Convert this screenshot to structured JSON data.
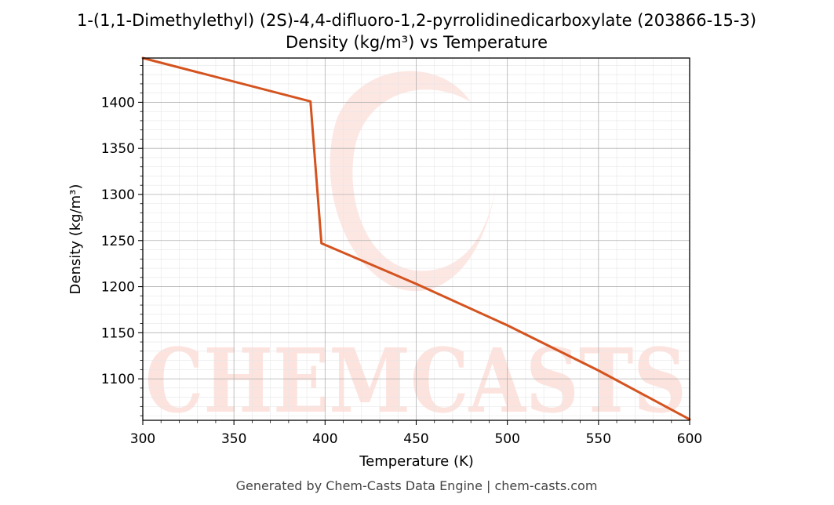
{
  "chart_data": {
    "type": "line",
    "title": "1-(1,1-Dimethylethyl) (2S)-4,4-difluoro-1,2-pyrrolidinedicarboxylate (203866-15-3)",
    "subtitle": "Density (kg/m³) vs Temperature",
    "xlabel": "Temperature (K)",
    "ylabel": "Density (kg/m³)",
    "xlim": [
      300,
      600
    ],
    "ylim": [
      1055,
      1448
    ],
    "xticks": [
      300,
      350,
      400,
      450,
      500,
      550,
      600
    ],
    "yticks": [
      1100,
      1150,
      1200,
      1250,
      1300,
      1350,
      1400
    ],
    "grid": true,
    "series": [
      {
        "color": "#d4531f",
        "x": [
          300,
          392,
          398,
          450,
          500,
          550,
          600
        ],
        "y": [
          1448,
          1401,
          1247,
          1203,
          1158,
          1109,
          1056
        ]
      }
    ]
  },
  "watermark": {
    "text": "CHEMCASTS",
    "color": "#fde3de"
  },
  "footer": "Generated by Chem-Casts Data Engine | chem-casts.com"
}
